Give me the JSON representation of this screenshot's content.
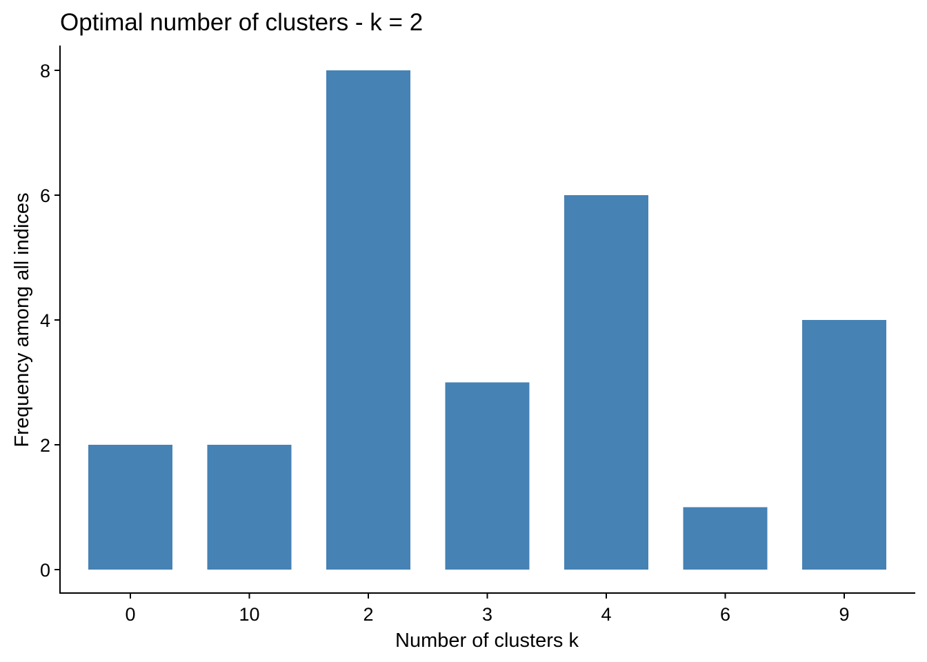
{
  "chart_data": {
    "type": "bar",
    "title": "Optimal number of clusters - k = 2",
    "xlabel": "Number of clusters k",
    "ylabel": "Frequency among all indices",
    "categories": [
      "0",
      "10",
      "2",
      "3",
      "4",
      "6",
      "9"
    ],
    "values": [
      2,
      2,
      8,
      3,
      6,
      1,
      4
    ],
    "y_ticks": [
      "0",
      "2",
      "4",
      "6",
      "8"
    ],
    "ylim": [
      0,
      8
    ],
    "bar_color": "#4682B4",
    "grid": false,
    "legend": "none"
  }
}
